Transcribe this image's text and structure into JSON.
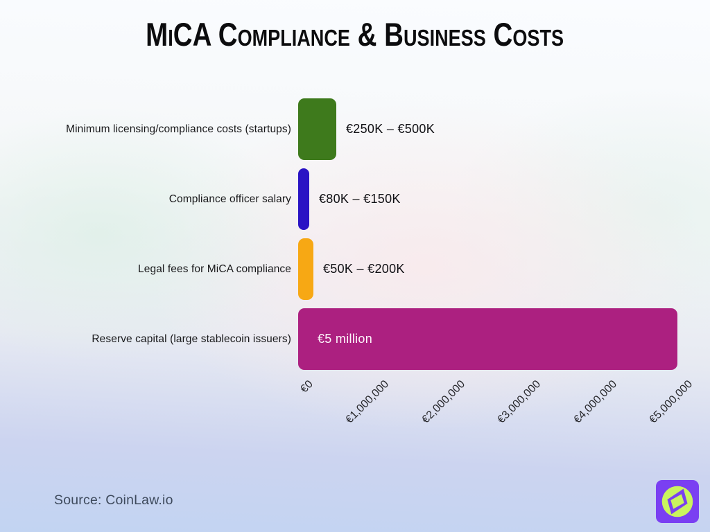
{
  "title": "MiCA Compliance & Business Costs",
  "source": "Source: CoinLaw.io",
  "chart_data": {
    "type": "bar",
    "orientation": "horizontal",
    "title": "MiCA Compliance & Business Costs",
    "categories": [
      "Minimum licensing/compliance costs (startups)",
      "Compliance officer salary",
      "Legal fees for MiCA compliance",
      "Reserve capital (large stablecoin issuers)"
    ],
    "values": [
      500000,
      150000,
      200000,
      5000000
    ],
    "value_labels": [
      "€250K – €500K",
      "€80K – €150K",
      "€50K – €200K",
      "€5 million"
    ],
    "label_inside": [
      false,
      false,
      false,
      true
    ],
    "bar_colors": [
      "#3e7a1c",
      "#2a13c4",
      "#f7a814",
      "#ac2080"
    ],
    "xlim": [
      0,
      5000000
    ],
    "x_ticks": [
      "€0",
      "€1,000,000",
      "€2,000,000",
      "€3,000,000",
      "€4,000,000",
      "€5,000,000"
    ],
    "x_tick_values": [
      0,
      1000000,
      2000000,
      3000000,
      4000000,
      5000000
    ],
    "xlabel": "",
    "ylabel": "",
    "grid": false,
    "legend": "none"
  },
  "logo": {
    "name": "coinlaw-compass-logo",
    "bg_color": "#7a3ff2",
    "accent_color": "#caf45e"
  }
}
